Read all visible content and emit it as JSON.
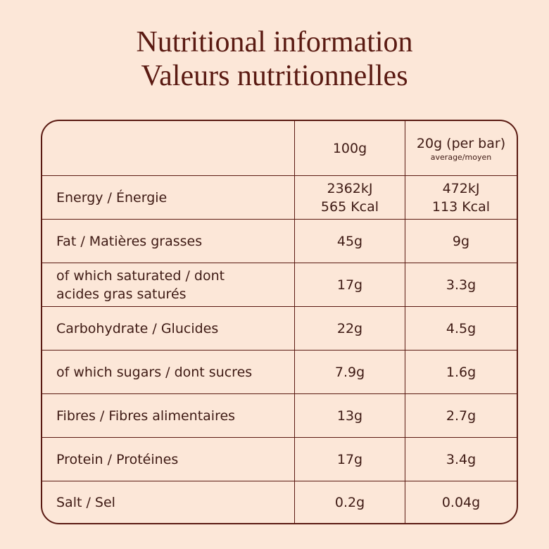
{
  "title": [
    "Nutritional information",
    "Valeurs nutritionnelles"
  ],
  "table": {
    "columns": [
      {
        "label": "100g"
      },
      {
        "label": "20g (per bar)",
        "note": "average/moyen"
      }
    ],
    "rows": [
      [
        "Energy / Énergie",
        [
          "2362kJ",
          "565 Kcal"
        ],
        [
          "472kJ",
          "113 Kcal"
        ]
      ],
      [
        "Fat / Matières grasses",
        "45g",
        "9g"
      ],
      [
        "of which saturated / dont acides gras saturés",
        "17g",
        "3.3g"
      ],
      [
        "Carbohydrate / Glucides",
        "22g",
        "4.5g"
      ],
      [
        "of which sugars / dont sucres",
        "7.9g",
        "1.6g"
      ],
      [
        "Fibres / Fibres alimentaires",
        "13g",
        "2.7g"
      ],
      [
        "Protein / Protéines",
        "17g",
        "3.4g"
      ],
      [
        "Salt / Sel",
        "0.2g",
        "0.04g"
      ]
    ]
  }
}
